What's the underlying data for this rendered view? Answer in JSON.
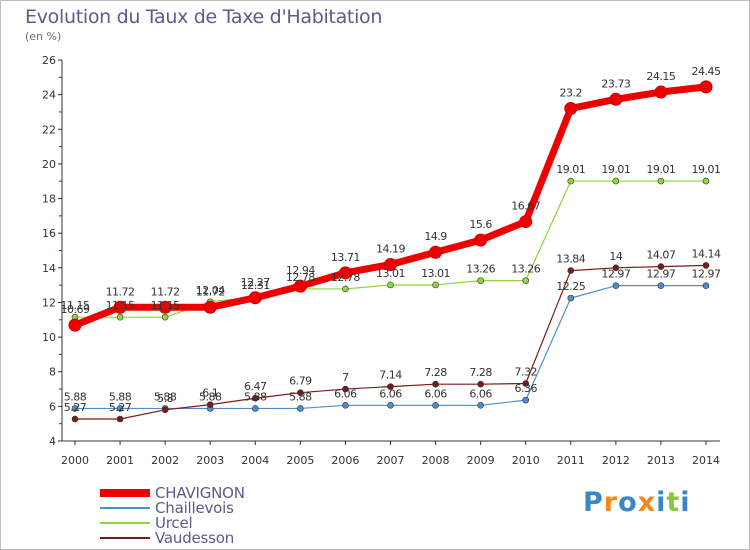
{
  "chart_data": {
    "type": "line",
    "title": "Evolution du Taux de Taxe d'Habitation",
    "subtitle": "(en %)",
    "x": [
      "2000",
      "2001",
      "2002",
      "2003",
      "2004",
      "2005",
      "2006",
      "2007",
      "2008",
      "2009",
      "2010",
      "2011",
      "2012",
      "2013",
      "2014"
    ],
    "ylim": [
      4,
      26
    ],
    "yticks": [
      "4",
      "6",
      "8",
      "10",
      "12",
      "14",
      "16",
      "18",
      "20",
      "22",
      "24",
      "26"
    ],
    "series": [
      {
        "name": "CHAVIGNON",
        "color": "#ee0000",
        "values": [
          10.69,
          11.72,
          11.72,
          11.72,
          12.27,
          12.94,
          13.71,
          14.19,
          14.9,
          15.6,
          16.67,
          23.2,
          23.73,
          24.15,
          24.45
        ],
        "labels": [
          "10.69",
          "11.72",
          "11.72",
          "11.72",
          "12.27",
          "12.94",
          "13.71",
          "14.19",
          "14.9",
          "15.6",
          "16.67",
          "23.2",
          "23.73",
          "24.15",
          "24.45"
        ]
      },
      {
        "name": "Chaillevois",
        "color": "#4d8fcc",
        "values": [
          5.88,
          5.88,
          5.88,
          5.88,
          5.88,
          5.88,
          6.06,
          6.06,
          6.06,
          6.06,
          6.36,
          12.25,
          12.97,
          12.97,
          12.97
        ],
        "labels": [
          "5.88",
          "5.88",
          "5.88",
          "5.88",
          "5.88",
          "5.88",
          "6.06",
          "6.06",
          "6.06",
          "6.06",
          "6.36",
          "12.25",
          "12.97",
          "12.97",
          "12.97"
        ]
      },
      {
        "name": "Urcel",
        "color": "#8dd63b",
        "values": [
          11.15,
          11.15,
          11.15,
          12.04,
          12.31,
          12.78,
          12.78,
          13.01,
          13.01,
          13.26,
          13.26,
          19.01,
          19.01,
          19.01,
          19.01
        ],
        "labels": [
          "11.15",
          "11.15",
          "11.15",
          "12.04",
          "12.31",
          "12.78",
          "12.78",
          "13.01",
          "13.01",
          "13.26",
          "13.26",
          "19.01",
          "19.01",
          "19.01",
          "19.01"
        ]
      },
      {
        "name": "Vaudesson",
        "color": "#7a1a1a",
        "values": [
          5.27,
          5.27,
          5.8,
          6.1,
          6.47,
          6.79,
          7,
          7.14,
          7.28,
          7.28,
          7.32,
          13.84,
          14,
          14.07,
          14.14
        ],
        "labels": [
          "5.27",
          "5.27",
          "5.8",
          "6.1",
          "6.47",
          "6.79",
          "7",
          "7.14",
          "7.28",
          "7.28",
          "7.32",
          "13.84",
          "14",
          "14.07",
          "14.14"
        ]
      }
    ],
    "grid": false,
    "legend_position": "bottom-left"
  },
  "logo": {
    "text": "Proxiti",
    "colors": [
      "#3a87c8",
      "#f08a1e",
      "#3a87c8",
      "#f08a1e",
      "#3a87c8",
      "#8cc63f",
      "#3a87c8"
    ]
  }
}
